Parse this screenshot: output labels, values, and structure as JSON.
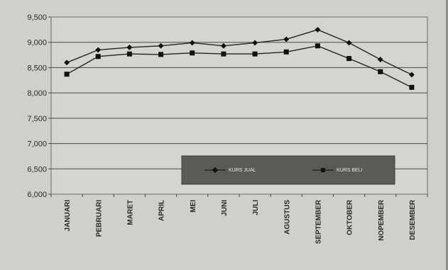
{
  "chart_data": {
    "type": "line",
    "categories": [
      "JANUARI",
      "PEBRUARI",
      "MARET",
      "APRIL",
      "MEI",
      "JUNI",
      "JULI",
      "AGUSTUS",
      "SEPTEMBER",
      "OKTOBER",
      "NOPEMBER",
      "DESEMBER"
    ],
    "series": [
      {
        "name": "KURS JUAL",
        "marker": "diamond",
        "values": [
          8600,
          8850,
          8900,
          8930,
          8990,
          8930,
          8990,
          9060,
          9250,
          8990,
          8660,
          8360
        ]
      },
      {
        "name": "KURS BELI",
        "marker": "square",
        "values": [
          8370,
          8720,
          8770,
          8760,
          8790,
          8770,
          8770,
          8810,
          8930,
          8680,
          8420,
          8110
        ]
      }
    ],
    "yticks": [
      "9,500",
      "9,000",
      "8,500",
      "8,000",
      "7,500",
      "7,000",
      "6,500",
      "6,000"
    ],
    "ylim": [
      6000,
      9500
    ],
    "grid": true,
    "legend_position": "bottom-right inside plot",
    "title": "",
    "xlabel": "",
    "ylabel": "",
    "colors": {
      "plot_background": "#d4d4d0",
      "line": "#222222",
      "legend_background": "#5a5a57"
    }
  }
}
